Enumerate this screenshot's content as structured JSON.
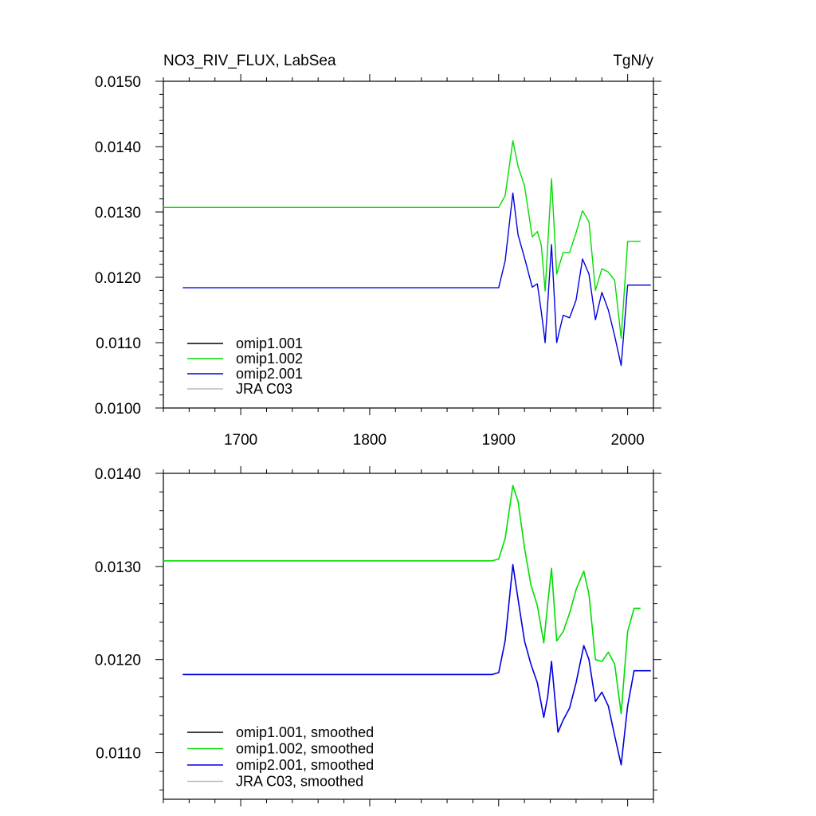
{
  "title": "NO3_RIV_FLUX, LabSea",
  "units": "TgN/y",
  "colors": {
    "omip1_001": "#000000",
    "omip1_002": "#00dd00",
    "omip2_001": "#0000dd",
    "jra_c03": "#bbbbbb"
  },
  "chart_data": [
    {
      "type": "line",
      "title": "NO3_RIV_FLUX, LabSea",
      "units_label": "TgN/y",
      "xlim": [
        1640,
        2020
      ],
      "ylim": [
        0.01,
        0.015
      ],
      "x_ticks": [
        1700,
        1800,
        1900,
        2000
      ],
      "x_tick_labels": [
        "1700",
        "1800",
        "1900",
        "2000"
      ],
      "y_ticks": [
        0.01,
        0.011,
        0.012,
        0.013,
        0.014,
        0.015
      ],
      "y_tick_labels": [
        "0.0100",
        "0.0110",
        "0.0120",
        "0.0130",
        "0.0140",
        "0.0150"
      ],
      "legend_position": "bottom-left",
      "series": [
        {
          "name": "omip1.001",
          "color_key": "omip1_001",
          "x": [],
          "y": []
        },
        {
          "name": "omip1.002",
          "color_key": "omip1_002",
          "x": [
            1640,
            1900,
            1905,
            1911,
            1915,
            1920,
            1926,
            1930,
            1933,
            1936,
            1941,
            1945,
            1950,
            1955,
            1960,
            1965,
            1970,
            1975,
            1980,
            1985,
            1990,
            1995,
            2000,
            2005,
            2010
          ],
          "y": [
            0.01307,
            0.01307,
            0.01325,
            0.01409,
            0.0137,
            0.0134,
            0.01262,
            0.0127,
            0.0125,
            0.01179,
            0.01351,
            0.01205,
            0.01238,
            0.01238,
            0.01268,
            0.01302,
            0.01285,
            0.0118,
            0.01213,
            0.01208,
            0.01195,
            0.01107,
            0.01255,
            0.01255,
            0.01255
          ]
        },
        {
          "name": "omip2.001",
          "color_key": "omip2_001",
          "x": [
            1655,
            1900,
            1905,
            1911,
            1915,
            1920,
            1926,
            1930,
            1933,
            1936,
            1941,
            1945,
            1950,
            1955,
            1960,
            1965,
            1970,
            1975,
            1980,
            1985,
            1990,
            1995,
            2000,
            2005,
            2018
          ],
          "y": [
            0.01184,
            0.01184,
            0.01225,
            0.01329,
            0.01265,
            0.0123,
            0.01185,
            0.0119,
            0.01148,
            0.011,
            0.0125,
            0.011,
            0.01142,
            0.01138,
            0.01165,
            0.01228,
            0.01205,
            0.01135,
            0.01177,
            0.0115,
            0.0111,
            0.01065,
            0.01188,
            0.01188,
            0.01188
          ]
        },
        {
          "name": "JRA C03",
          "color_key": "jra_c03",
          "x": [],
          "y": []
        }
      ]
    },
    {
      "type": "line",
      "xlim": [
        1640,
        2020
      ],
      "ylim": [
        0.0105,
        0.014
      ],
      "x_ticks": [
        1700,
        1800,
        1900,
        2000
      ],
      "x_tick_labels": [],
      "y_ticks": [
        0.011,
        0.012,
        0.013,
        0.014
      ],
      "y_tick_labels": [
        "0.0110",
        "0.0120",
        "0.0130",
        "0.0140"
      ],
      "legend_position": "bottom-left",
      "series": [
        {
          "name": "omip1.001, smoothed",
          "color_key": "omip1_001",
          "x": [],
          "y": []
        },
        {
          "name": "omip1.002, smoothed",
          "color_key": "omip1_002",
          "x": [
            1640,
            1895,
            1900,
            1905,
            1911,
            1915,
            1920,
            1925,
            1930,
            1935,
            1938,
            1941,
            1945,
            1950,
            1955,
            1960,
            1966,
            1970,
            1975,
            1980,
            1985,
            1990,
            1995,
            2000,
            2005,
            2010
          ],
          "y": [
            0.01306,
            0.01306,
            0.01308,
            0.0133,
            0.01387,
            0.0137,
            0.0132,
            0.0128,
            0.01258,
            0.01218,
            0.0126,
            0.01298,
            0.0122,
            0.0123,
            0.0125,
            0.01275,
            0.01295,
            0.0127,
            0.012,
            0.01198,
            0.01208,
            0.01195,
            0.01142,
            0.0123,
            0.01255,
            0.01255
          ]
        },
        {
          "name": "omip2.001, smoothed",
          "color_key": "omip2_001",
          "x": [
            1655,
            1895,
            1900,
            1905,
            1911,
            1915,
            1920,
            1925,
            1930,
            1935,
            1938,
            1941,
            1946,
            1950,
            1955,
            1960,
            1966,
            1970,
            1975,
            1980,
            1985,
            1990,
            1995,
            2000,
            2005,
            2018
          ],
          "y": [
            0.01184,
            0.01184,
            0.01186,
            0.0122,
            0.01302,
            0.01265,
            0.0122,
            0.01195,
            0.01175,
            0.01138,
            0.0116,
            0.01198,
            0.01122,
            0.01135,
            0.01148,
            0.01175,
            0.01215,
            0.012,
            0.01155,
            0.01165,
            0.0115,
            0.01118,
            0.01087,
            0.0115,
            0.01188,
            0.01188
          ]
        },
        {
          "name": "JRA C03, smoothed",
          "color_key": "jra_c03",
          "x": [],
          "y": []
        }
      ]
    }
  ]
}
